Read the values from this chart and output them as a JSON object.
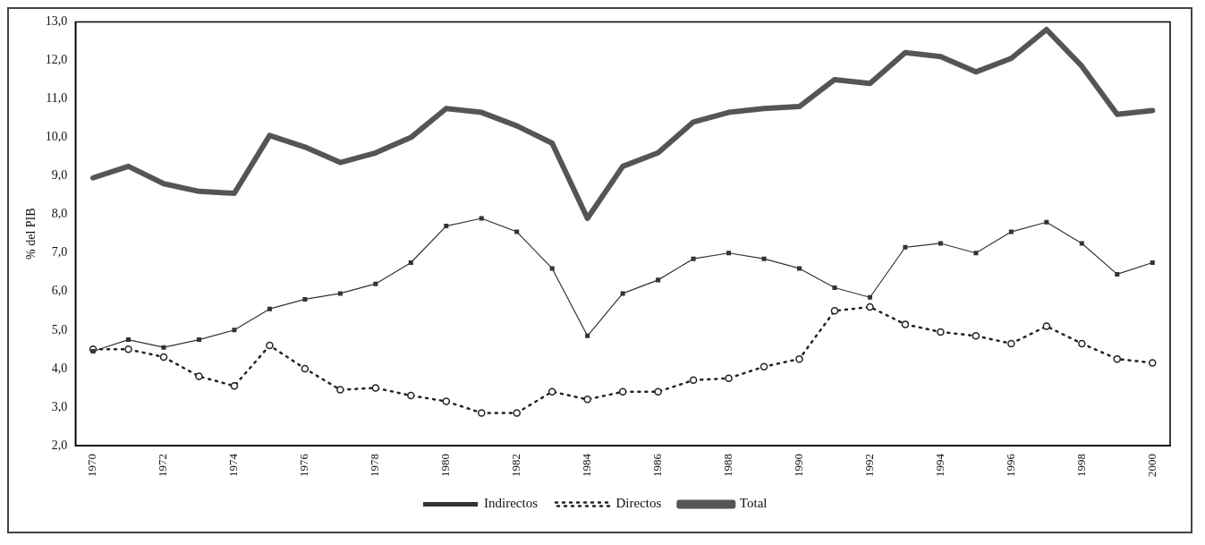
{
  "chart_data": {
    "type": "line",
    "ylabel": "% del PIB",
    "categories": [
      "1970",
      null,
      "1972",
      null,
      "1974",
      null,
      "1976",
      null,
      "1978",
      null,
      "1980",
      null,
      "1982",
      null,
      "1984",
      null,
      "1986",
      null,
      "1988",
      null,
      "1990",
      null,
      "1992",
      null,
      "1994",
      null,
      "1996",
      null,
      "1998",
      null,
      "2000"
    ],
    "series": [
      {
        "name": "Directos",
        "color": "#222222",
        "marker": "circle",
        "line_style": "dotted",
        "values": [
          4.5,
          4.5,
          4.3,
          3.8,
          3.55,
          4.6,
          4.0,
          3.45,
          3.5,
          3.3,
          3.15,
          2.85,
          2.85,
          3.4,
          3.2,
          3.4,
          3.4,
          3.7,
          3.75,
          4.05,
          4.25,
          5.5,
          5.6,
          5.15,
          4.95,
          4.85,
          4.65,
          5.1,
          4.65,
          4.25,
          4.15
        ]
      },
      {
        "name": "Indirectos",
        "color": "#333333",
        "marker": "square",
        "line_style": "solid",
        "values": [
          4.45,
          4.75,
          4.55,
          4.75,
          5.0,
          5.55,
          5.8,
          5.95,
          6.2,
          6.75,
          7.7,
          7.9,
          7.55,
          6.6,
          4.85,
          5.95,
          6.3,
          6.85,
          7.0,
          6.85,
          6.6,
          6.1,
          5.85,
          7.15,
          7.25,
          7.0,
          7.55,
          7.8,
          7.25,
          6.45,
          6.75
        ]
      },
      {
        "name": "Total",
        "color": "#555555",
        "marker": "none",
        "line_style": "solid",
        "values": [
          8.95,
          9.25,
          8.8,
          8.6,
          8.55,
          10.05,
          9.75,
          9.35,
          9.6,
          10.0,
          10.75,
          10.65,
          10.3,
          9.85,
          7.9,
          9.25,
          9.6,
          10.4,
          10.65,
          10.75,
          10.8,
          11.5,
          11.4,
          12.2,
          12.1,
          11.7,
          12.05,
          12.8,
          11.85,
          10.6,
          10.7
        ]
      }
    ],
    "ylim": [
      2,
      13
    ],
    "yticks": [
      {
        "value": 2,
        "label": "2,0"
      },
      {
        "value": 3,
        "label": "3,0"
      },
      {
        "value": 4,
        "label": "4,0"
      },
      {
        "value": 5,
        "label": "5,0"
      },
      {
        "value": 6,
        "label": "6,0"
      },
      {
        "value": 7,
        "label": "7,0"
      },
      {
        "value": 8,
        "label": "8,0"
      },
      {
        "value": 9,
        "label": "9,0"
      },
      {
        "value": 10,
        "label": "10,0"
      },
      {
        "value": 11,
        "label": "11,0"
      },
      {
        "value": 12,
        "label": "12,0"
      },
      {
        "value": 13,
        "label": "13,0"
      }
    ],
    "grid": false,
    "legend": "bottom"
  }
}
